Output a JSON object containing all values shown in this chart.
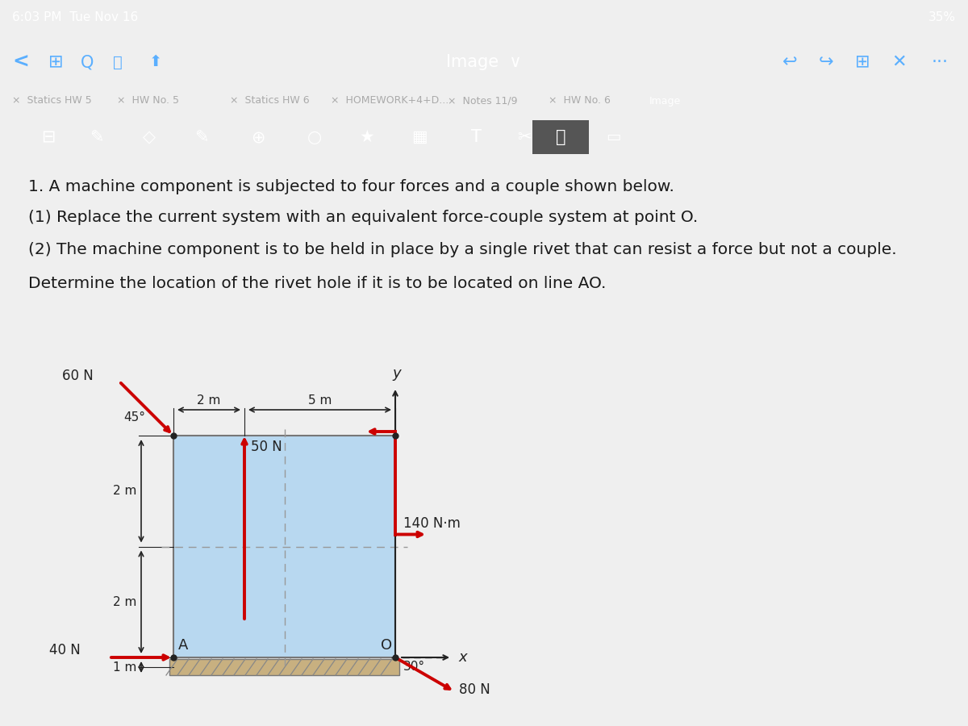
{
  "bg_top": "#1e3a5f",
  "bg_nav": "#1e3a5f",
  "bg_tabs": "#2d2d2d",
  "bg_toolbar": "#3c3c3c",
  "bg_content": "#efefef",
  "status_text": "6:03 PM  Tue Nov 16",
  "battery_text": "35%",
  "tabs": [
    "Statics HW 5",
    "HW No. 5",
    "Statics HW 6",
    "HOMEWORK+4+D...",
    "Notes 11/9",
    "HW No. 6",
    "Image"
  ],
  "line1": "1. A machine component is subjected to four forces and a couple shown below.",
  "line2": "(1) Replace the current system with an equivalent force-couple system at point O.",
  "line3": "(2) The machine component is to be held in place by a single rivet that can resist a force but not a couple.",
  "line4": "Determine the location of the rivet hole if it is to be located on line AO.",
  "rect_fill": "#b8d8f0",
  "arrow_color": "#cc0000",
  "dim_color": "#222222",
  "text_color": "#1a1a1a",
  "ground_color": "#c8b080",
  "dot_color": "#222222"
}
